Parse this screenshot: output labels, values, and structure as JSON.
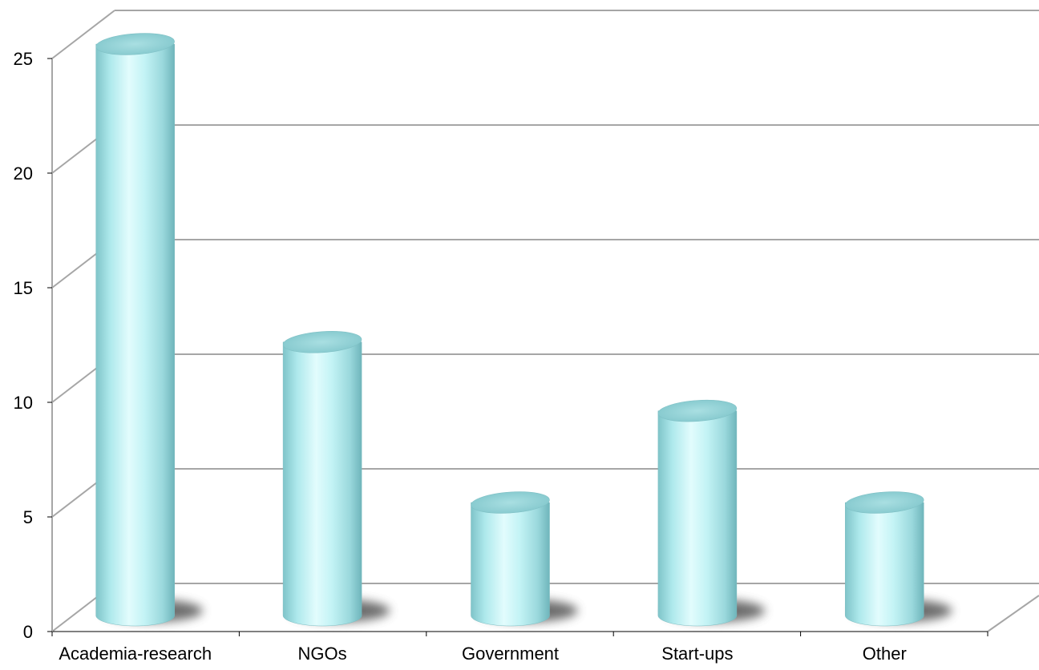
{
  "chart_data": {
    "type": "bar",
    "style": "3d-cylinder",
    "categories": [
      "Academia-research",
      "NGOs",
      "Government",
      "Start-ups",
      "Other"
    ],
    "values": [
      25,
      12,
      5,
      9,
      5
    ],
    "yticks": [
      0,
      5,
      10,
      15,
      20,
      25
    ],
    "ylim": [
      0,
      25
    ],
    "grid": true,
    "legend": "none",
    "colors": {
      "bar_body": "#aee9ec",
      "bar_highlight": "#e0fbfc",
      "bar_shade": "#76c2c8",
      "bar_top": "#8ccfd3",
      "gridline": "#a6a6a6",
      "shadow": "#555555"
    }
  }
}
